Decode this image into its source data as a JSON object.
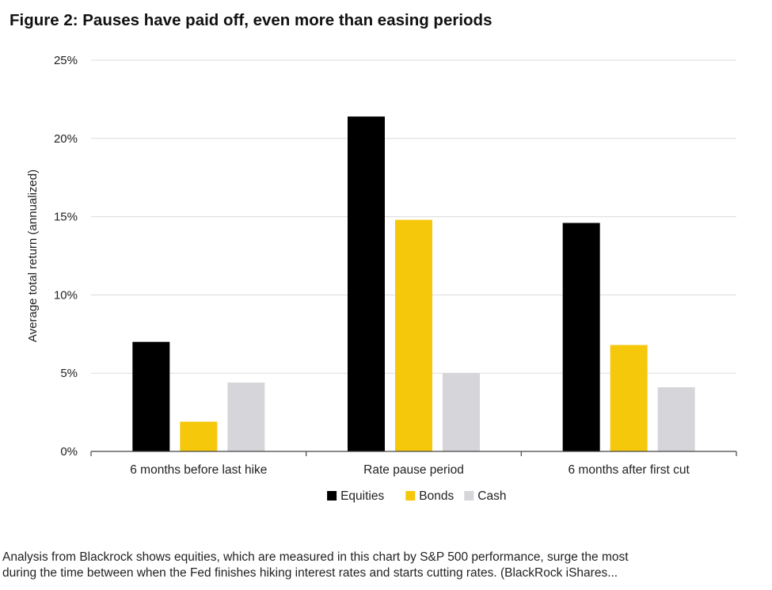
{
  "title": "Figure 2: Pauses have paid off, even more than easing periods",
  "caption": {
    "line1": "Analysis from Blackrock shows equities, which are measured in this chart by S&P 500 performance, surge the most",
    "line2": "during the time between when the Fed finishes hiking interest rates and starts cutting rates. (BlackRock iShares..."
  },
  "colors": {
    "Equities": "#000000",
    "Bonds": "#f5c80c",
    "Cash": "#d6d6da"
  },
  "chart_data": {
    "type": "bar",
    "title": "Figure 2: Pauses have paid off, even more than easing periods",
    "xlabel": "",
    "ylabel": "Average total return (annualized)",
    "ylim": [
      0,
      25
    ],
    "yticks": [
      0,
      5,
      10,
      15,
      20,
      25
    ],
    "ytick_labels": [
      "0%",
      "5%",
      "10%",
      "15%",
      "20%",
      "25%"
    ],
    "categories": [
      "6 months before last hike",
      "Rate pause period",
      "6 months after first cut"
    ],
    "series": [
      {
        "name": "Equities",
        "values": [
          7.0,
          21.4,
          14.6
        ]
      },
      {
        "name": "Bonds",
        "values": [
          1.9,
          14.8,
          6.8
        ]
      },
      {
        "name": "Cash",
        "values": [
          4.4,
          5.0,
          4.1
        ]
      }
    ],
    "grid": true,
    "legend": "bottom-center"
  }
}
